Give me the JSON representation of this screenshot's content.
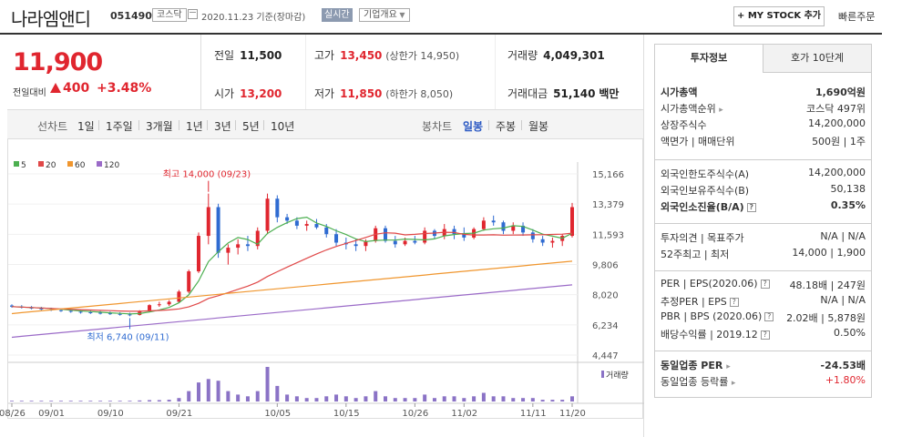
{
  "header": {
    "stock_name": "나라엠앤디",
    "stock_code": "051490",
    "market": "코스닥",
    "date_text": "2020.11.23 기준(장마감)",
    "realtime": "실시간",
    "company_overview": "기업개요",
    "mystock_label": "+ MY STOCK 추가",
    "quick_order": "빠른주문"
  },
  "price": {
    "current": "11,900",
    "change_label": "전일대비",
    "change_value": "400",
    "change_rate": "+3.48%",
    "up_color": "#e0262f"
  },
  "summary": {
    "prev_close_label": "전일",
    "prev_close": "11,500",
    "high_label": "고가",
    "high": "13,450",
    "upper_limit": "(상한가 14,950)",
    "volume_label": "거래량",
    "volume": "4,049,301",
    "open_label": "시가",
    "open": "13,200",
    "low_label": "저가",
    "low": "11,850",
    "lower_limit": "(하한가 8,050)",
    "amount_label": "거래대금",
    "amount": "51,140",
    "amount_unit": "백만"
  },
  "periods": {
    "line_label": "선차트",
    "line_items": [
      "1일",
      "1주일",
      "3개월",
      "1년",
      "3년",
      "5년",
      "10년"
    ],
    "candle_label": "봉차트",
    "candle_items": [
      "일봉",
      "주봉",
      "월봉"
    ],
    "selected_candle": "일봉"
  },
  "chart_data": {
    "type": "candlestick",
    "legend": [
      {
        "name": "5",
        "color": "#4caf50"
      },
      {
        "name": "20",
        "color": "#e04848"
      },
      {
        "name": "60",
        "color": "#f0962e"
      },
      {
        "name": "120",
        "color": "#9b6bc8"
      }
    ],
    "y_ticks": [
      "15,166",
      "13,379",
      "11,593",
      "9,806",
      "8,020",
      "6,234",
      "4,447"
    ],
    "ylim": [
      4447,
      15166
    ],
    "x_ticks": [
      "08/26",
      "09/01",
      "09/10",
      "09/21",
      "10/05",
      "10/15",
      "10/26",
      "11/02",
      "11/11",
      "11/20"
    ],
    "max_annotation": "최고 14,000 (09/23)",
    "min_annotation": "최저 6,740 (09/11)",
    "volume_label": "거래량",
    "candles": [
      [
        7380,
        7450,
        7250,
        7310
      ],
      [
        7310,
        7400,
        7200,
        7260
      ],
      [
        7260,
        7350,
        7150,
        7200
      ],
      [
        7200,
        7300,
        7100,
        7150
      ],
      [
        7150,
        7250,
        7050,
        7100
      ],
      [
        7100,
        7200,
        7000,
        7060
      ],
      [
        7060,
        7150,
        6950,
        7010
      ],
      [
        7010,
        7100,
        6900,
        6980
      ],
      [
        6980,
        7080,
        6880,
        6950
      ],
      [
        6950,
        7050,
        6850,
        6920
      ],
      [
        6920,
        7020,
        6820,
        6880
      ],
      [
        6880,
        6980,
        6780,
        6850
      ],
      [
        6850,
        6950,
        6740,
        6820
      ],
      [
        6820,
        7100,
        6790,
        7050
      ],
      [
        7050,
        7450,
        7000,
        7400
      ],
      [
        7400,
        7600,
        7300,
        7450
      ],
      [
        7450,
        7700,
        7350,
        7600
      ],
      [
        7600,
        8300,
        7550,
        8200
      ],
      [
        8200,
        9500,
        8100,
        9400
      ],
      [
        9400,
        11700,
        9300,
        11500
      ],
      [
        11500,
        14000,
        11000,
        13200
      ],
      [
        13200,
        13400,
        10200,
        10500
      ],
      [
        10500,
        11000,
        9800,
        10800
      ],
      [
        10800,
        11300,
        10400,
        11000
      ],
      [
        11000,
        11500,
        10600,
        10900
      ],
      [
        10900,
        12000,
        10700,
        11800
      ],
      [
        11800,
        14000,
        11600,
        13700
      ],
      [
        13700,
        13900,
        12300,
        12600
      ],
      [
        12600,
        12800,
        12200,
        12400
      ],
      [
        12400,
        12600,
        11900,
        12100
      ],
      [
        12100,
        12400,
        11800,
        12200
      ],
      [
        12200,
        12500,
        11900,
        12000
      ],
      [
        12000,
        12200,
        11400,
        11600
      ],
      [
        11600,
        11900,
        10900,
        11100
      ],
      [
        11100,
        11400,
        10700,
        11000
      ],
      [
        11000,
        11300,
        10600,
        10900
      ],
      [
        10900,
        11300,
        10600,
        11200
      ],
      [
        11200,
        12100,
        11100,
        11950
      ],
      [
        11950,
        12100,
        11100,
        11200
      ],
      [
        11200,
        11500,
        10800,
        11000
      ],
      [
        11000,
        11400,
        10900,
        11200
      ],
      [
        11200,
        11500,
        11000,
        11100
      ],
      [
        11100,
        12000,
        11000,
        11800
      ],
      [
        11800,
        11900,
        11300,
        11500
      ],
      [
        11500,
        12200,
        11300,
        11900
      ],
      [
        11900,
        12100,
        11300,
        11600
      ],
      [
        11600,
        12000,
        11200,
        11400
      ],
      [
        11400,
        12000,
        11300,
        11900
      ],
      [
        11900,
        12600,
        11800,
        12400
      ],
      [
        12400,
        12700,
        12100,
        12300
      ],
      [
        12300,
        12400,
        11600,
        11800
      ],
      [
        11800,
        12300,
        11600,
        12100
      ],
      [
        12100,
        12300,
        11500,
        11700
      ],
      [
        11700,
        11900,
        11100,
        11300
      ],
      [
        11300,
        11500,
        10900,
        11100
      ],
      [
        11100,
        11400,
        10800,
        11200
      ],
      [
        11200,
        11600,
        10900,
        11500
      ],
      [
        11500,
        13450,
        11400,
        13200
      ]
    ],
    "volumes": [
      0.02,
      0.02,
      0.02,
      0.02,
      0.02,
      0.02,
      0.02,
      0.02,
      0.02,
      0.02,
      0.02,
      0.02,
      0.02,
      0.03,
      0.04,
      0.04,
      0.05,
      0.1,
      0.3,
      0.55,
      0.65,
      0.6,
      0.3,
      0.2,
      0.15,
      0.3,
      1.0,
      0.45,
      0.2,
      0.15,
      0.1,
      0.1,
      0.15,
      0.2,
      0.15,
      0.1,
      0.15,
      0.3,
      0.15,
      0.1,
      0.1,
      0.1,
      0.2,
      0.1,
      0.15,
      0.15,
      0.1,
      0.15,
      0.25,
      0.15,
      0.15,
      0.1,
      0.1,
      0.1,
      0.05,
      0.05,
      0.05,
      0.15
    ]
  },
  "tabs": {
    "invest": "투자정보",
    "orderbook": "호가 10단계"
  },
  "info": {
    "market_cap_label": "시가총액",
    "market_cap": "1,690억원",
    "cap_rank_label": "시가총액순위",
    "cap_rank": "코스닥 497위",
    "shares_label": "상장주식수",
    "shares": "14,200,000",
    "par_label": "액면가 | 매매단위",
    "par": "500원 | 1주",
    "foreign_limit_label": "외국인한도주식수(A)",
    "foreign_limit": "14,200,000",
    "foreign_hold_label": "외국인보유주식수(B)",
    "foreign_hold": "50,138",
    "foreign_ratio_label": "외국인소진율(B/A)",
    "foreign_ratio": "0.35%",
    "opinion_label": "투자의견 | 목표주가",
    "opinion": "N/A | N/A",
    "week52_label": "52주최고 | 최저",
    "week52": "14,000 | 1,900",
    "per_label": "PER | EPS(2020.06)",
    "per": "48.18배 | 247원",
    "est_per_label": "추정PER | EPS",
    "est_per": "N/A | N/A",
    "pbr_label": "PBR | BPS (2020.06)",
    "pbr": "2.02배 | 5,878원",
    "div_label": "배당수익률 | 2019.12",
    "div": "0.50%",
    "sector_per_label": "동일업종 PER",
    "sector_per": "-24.53배",
    "sector_rate_label": "동일업종 등락률",
    "sector_rate": "+1.80%"
  }
}
